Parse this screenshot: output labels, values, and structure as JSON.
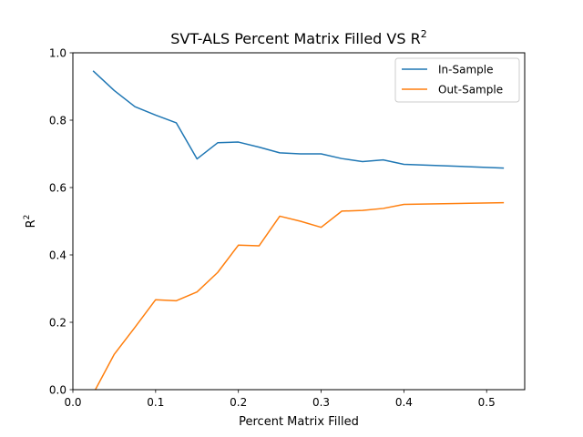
{
  "chart_data": {
    "type": "line",
    "title": "SVT-ALS Percent Matrix Filled VS R",
    "title_superscript": "2",
    "xlabel": "Percent Matrix Filled",
    "ylabel": "R",
    "ylabel_superscript": "2",
    "xlim": [
      0.0,
      0.546
    ],
    "ylim": [
      0.0,
      1.0
    ],
    "xticks": [
      0.0,
      0.1,
      0.2,
      0.3,
      0.4,
      0.5
    ],
    "xtick_labels": [
      "0.0",
      "0.1",
      "0.2",
      "0.3",
      "0.4",
      "0.5"
    ],
    "yticks": [
      0.0,
      0.2,
      0.4,
      0.6,
      0.8,
      1.0
    ],
    "ytick_labels": [
      "0.0",
      "0.2",
      "0.4",
      "0.6",
      "0.8",
      "1.0"
    ],
    "grid": false,
    "legend_position": "top-right",
    "series": [
      {
        "name": "In-Sample",
        "color": "#1f77b4",
        "points": [
          [
            0.025,
            0.945
          ],
          [
            0.05,
            0.888
          ],
          [
            0.075,
            0.84
          ],
          [
            0.1,
            0.815
          ],
          [
            0.125,
            0.792
          ],
          [
            0.15,
            0.685
          ],
          [
            0.175,
            0.733
          ],
          [
            0.2,
            0.735
          ],
          [
            0.225,
            0.72
          ],
          [
            0.25,
            0.703
          ],
          [
            0.275,
            0.7
          ],
          [
            0.3,
            0.7
          ],
          [
            0.325,
            0.686
          ],
          [
            0.35,
            0.677
          ],
          [
            0.375,
            0.682
          ],
          [
            0.4,
            0.669
          ],
          [
            0.52,
            0.658
          ]
        ]
      },
      {
        "name": "Out-Sample",
        "color": "#ff7f0e",
        "points": [
          [
            0.025,
            -0.01
          ],
          [
            0.05,
            0.105
          ],
          [
            0.075,
            0.185
          ],
          [
            0.1,
            0.267
          ],
          [
            0.125,
            0.264
          ],
          [
            0.15,
            0.29
          ],
          [
            0.175,
            0.348
          ],
          [
            0.2,
            0.429
          ],
          [
            0.225,
            0.427
          ],
          [
            0.25,
            0.515
          ],
          [
            0.275,
            0.5
          ],
          [
            0.3,
            0.482
          ],
          [
            0.325,
            0.53
          ],
          [
            0.35,
            0.532
          ],
          [
            0.375,
            0.538
          ],
          [
            0.4,
            0.55
          ],
          [
            0.52,
            0.555
          ]
        ]
      }
    ]
  }
}
